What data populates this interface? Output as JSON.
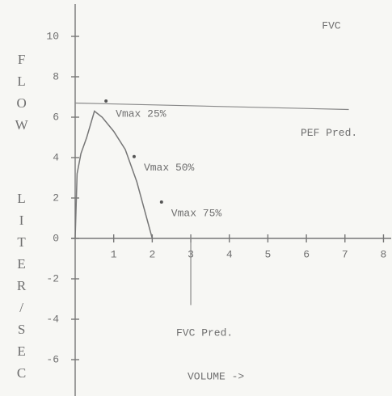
{
  "chart_data": {
    "type": "line",
    "title": "FVC",
    "y_label_top": "FLOW",
    "y_label_bottom": "LITER/SEC",
    "x_label": "VOLUME ->",
    "xlim": [
      0,
      8.2
    ],
    "ylim": [
      -7.8,
      11.8
    ],
    "xticks": [
      1,
      2,
      3,
      4,
      5,
      6,
      7,
      8
    ],
    "yticks": [
      10,
      8,
      6,
      4,
      2,
      0,
      -2,
      -4,
      -6
    ],
    "color": "#777777",
    "x": [
      0,
      0.05,
      0.15,
      0.3,
      0.5,
      0.7,
      1.0,
      1.3,
      1.6,
      1.8,
      2.0
    ],
    "values": [
      0,
      3.2,
      4.2,
      5.0,
      6.3,
      6.0,
      5.3,
      4.4,
      2.8,
      1.4,
      0
    ],
    "points": [
      {
        "label": "Vmax 25%",
        "x": 0.8,
        "y": 6.8
      },
      {
        "label": "Vmax 50%",
        "x": 1.53,
        "y": 4.05
      },
      {
        "label": "Vmax 75%",
        "x": 2.24,
        "y": 1.8
      }
    ],
    "pef_pred": {
      "label": "PEF Pred.",
      "value": 6.7,
      "x": [
        0,
        7.1
      ]
    },
    "fvc_pred": {
      "label": "FVC Pred.",
      "value": 3,
      "y": [
        0.2,
        -3.3
      ]
    }
  }
}
